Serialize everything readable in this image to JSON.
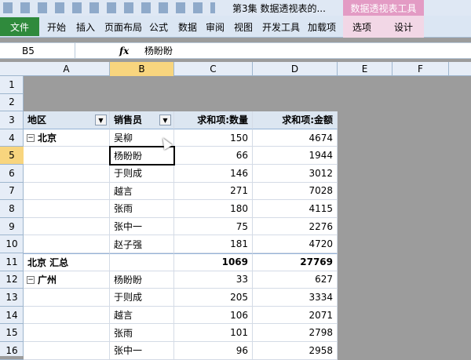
{
  "title_bar": {
    "title": "第3集 数据透视表的...",
    "context_tab": "数据透视表工具"
  },
  "ribbon": {
    "file_tab": "文件",
    "tabs": [
      "开始",
      "插入",
      "页面布局",
      "公式",
      "数据",
      "审阅",
      "视图",
      "开发工具",
      "加载项"
    ],
    "context_tabs": [
      "选项",
      "设计"
    ]
  },
  "formula_bar": {
    "name_box": "B5",
    "fx": "fx",
    "formula": "杨盼盼"
  },
  "sheet": {
    "columns": [
      "A",
      "B",
      "C",
      "D",
      "E",
      "F"
    ],
    "row_numbers": [
      1,
      2,
      3,
      4,
      5,
      6,
      7,
      8,
      9,
      10,
      11,
      12,
      13,
      14,
      15,
      16
    ],
    "pivot": {
      "headers": [
        "地区",
        "销售员",
        "求和项:数量",
        "求和项:金额"
      ],
      "rows": [
        [
          "北京",
          "吴柳",
          150,
          4674
        ],
        [
          null,
          "杨盼盼",
          66,
          1944
        ],
        [
          null,
          "于则成",
          146,
          3012
        ],
        [
          null,
          "越言",
          271,
          7028
        ],
        [
          null,
          "张雨",
          180,
          4115
        ],
        [
          null,
          "张中一",
          75,
          2276
        ],
        [
          null,
          "赵子强",
          181,
          4720
        ],
        [
          "北京 汇总",
          null,
          1069,
          27769
        ],
        [
          "广州",
          "杨盼盼",
          33,
          627
        ],
        [
          null,
          "于则成",
          205,
          3334
        ],
        [
          null,
          "越言",
          106,
          2071
        ],
        [
          null,
          "张雨",
          101,
          2798
        ],
        [
          null,
          "张中一",
          96,
          2958
        ]
      ]
    }
  }
}
